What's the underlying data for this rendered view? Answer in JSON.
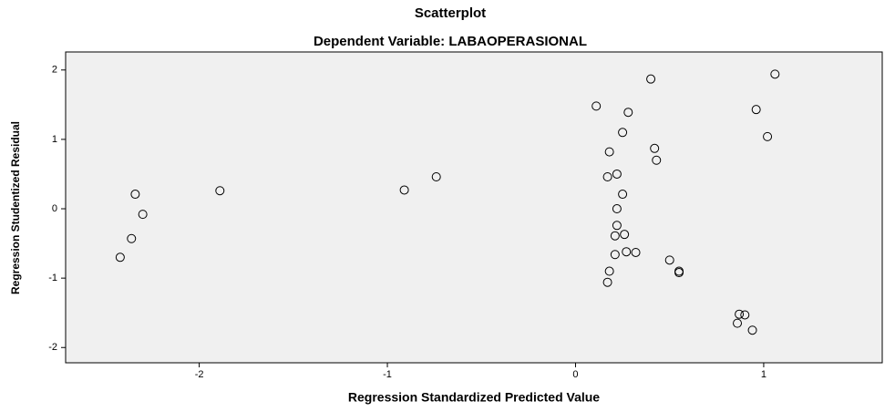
{
  "chart_data": {
    "type": "scatter",
    "title": "Scatterplot",
    "subtitle": "Dependent Variable: LABAOPERASIONAL",
    "x_label": "Regression Standardized Predicted Value",
    "y_label": "Regression Studentized Residual",
    "x": [
      -2.34,
      -2.3,
      -2.36,
      -2.42,
      -1.89,
      -0.91,
      -0.74,
      0.4,
      0.11,
      0.28,
      0.25,
      0.18,
      0.42,
      0.43,
      0.17,
      0.22,
      0.25,
      0.22,
      0.22,
      0.26,
      0.21,
      0.27,
      0.32,
      0.21,
      0.5,
      0.55,
      0.55,
      0.18,
      0.17,
      0.87,
      0.9,
      0.86,
      0.94,
      1.06,
      0.96,
      1.02
    ],
    "y": [
      0.21,
      -0.08,
      -0.43,
      -0.7,
      0.26,
      0.27,
      0.46,
      1.87,
      1.48,
      1.39,
      1.1,
      0.82,
      0.87,
      0.7,
      0.46,
      0.5,
      0.21,
      0.0,
      -0.24,
      -0.37,
      -0.39,
      -0.62,
      -0.63,
      -0.66,
      -0.74,
      -0.9,
      -0.92,
      -0.9,
      -1.06,
      -1.52,
      -1.53,
      -1.65,
      -1.75,
      1.94,
      1.43,
      1.04
    ],
    "color": "#000000",
    "background": "#f0f0f0",
    "xlim": [
      -2.71,
      1.63
    ],
    "ylim": [
      -2.22,
      2.26
    ],
    "xticks": [
      -2,
      -1,
      0,
      1
    ],
    "yticks": [
      -2,
      -1,
      0,
      1,
      2
    ]
  }
}
